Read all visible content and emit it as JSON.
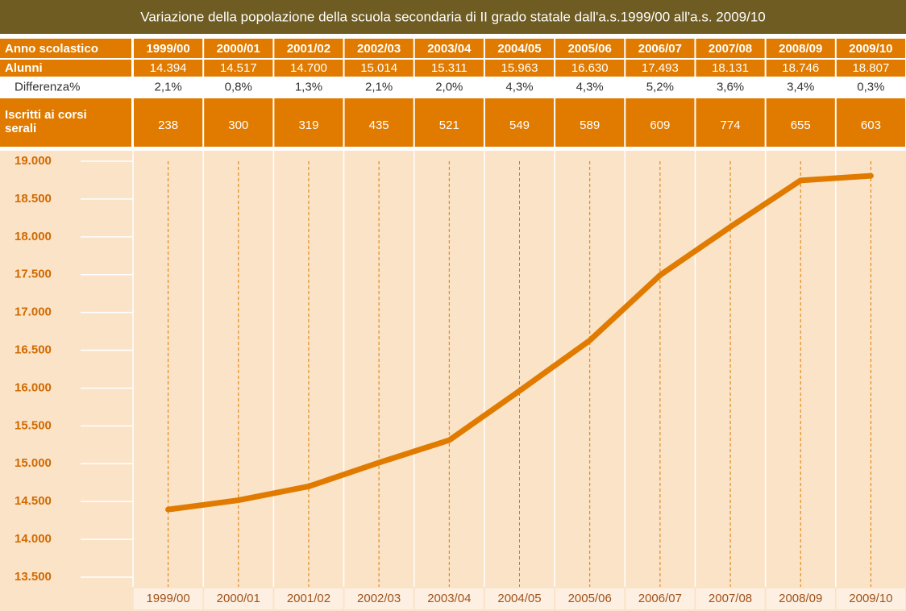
{
  "chart_data": {
    "type": "line",
    "title": "Variazione della popolazione della scuola secondaria di II grado statale dall'a.s.1999/00 all'a.s. 2009/10",
    "category_label": "Anno scolastico",
    "categories": [
      "1999/00",
      "2000/01",
      "2001/02",
      "2002/03",
      "2003/04",
      "2004/05",
      "2005/06",
      "2006/07",
      "2007/08",
      "2008/09",
      "2009/10"
    ],
    "series": [
      {
        "name": "Alunni",
        "color": "#e07b00",
        "values": [
          14394,
          14517,
          14700,
          15014,
          15311,
          15963,
          16630,
          17493,
          18131,
          18746,
          18807
        ],
        "value_labels": [
          "14.394",
          "14.517",
          "14.700",
          "15.014",
          "15.311",
          "15.963",
          "16.630",
          "17.493",
          "18.131",
          "18.746",
          "18.807"
        ]
      }
    ],
    "table_rows": [
      {
        "name": "Differenza%",
        "values": [
          "2,1%",
          "0,8%",
          "1,3%",
          "2,1%",
          "2,0%",
          "4,3%",
          "4,3%",
          "5,2%",
          "3,6%",
          "3,4%",
          "0,3%"
        ]
      },
      {
        "name": "Iscritti ai corsi serali",
        "values": [
          238,
          300,
          319,
          435,
          521,
          549,
          589,
          609,
          774,
          655,
          603
        ]
      }
    ],
    "ylim": [
      13500,
      19000
    ],
    "yticks": [
      {
        "value": 13500,
        "label": "13.500"
      },
      {
        "value": 14000,
        "label": "14.000"
      },
      {
        "value": 14500,
        "label": "14.500"
      },
      {
        "value": 15000,
        "label": "15.000"
      },
      {
        "value": 15500,
        "label": "15.500"
      },
      {
        "value": 16000,
        "label": "16.000"
      },
      {
        "value": 16500,
        "label": "16.500"
      },
      {
        "value": 17000,
        "label": "17.000"
      },
      {
        "value": 17500,
        "label": "17.500"
      },
      {
        "value": 18000,
        "label": "18.000"
      },
      {
        "value": 18500,
        "label": "18.500"
      },
      {
        "value": 19000,
        "label": "19.000"
      }
    ]
  }
}
